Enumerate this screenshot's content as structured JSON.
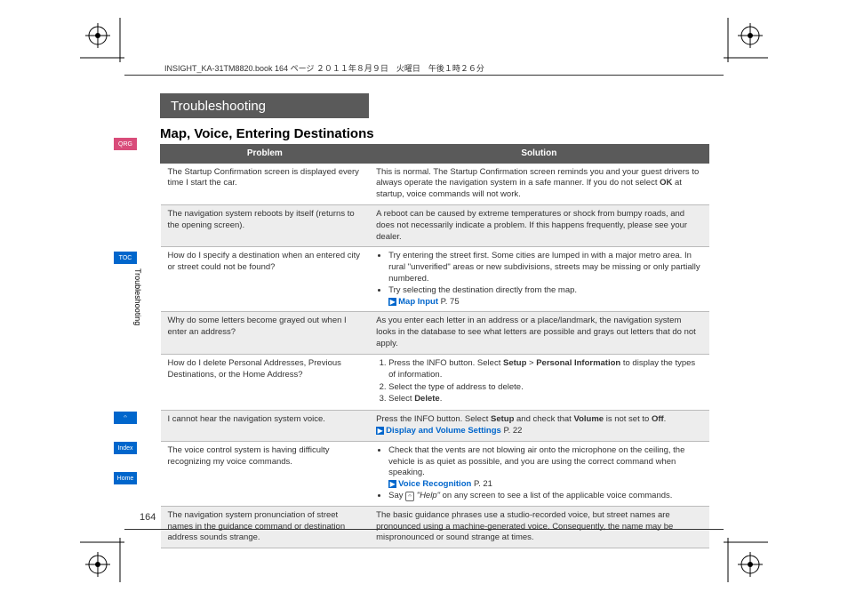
{
  "header_stamp": "INSIGHT_KA-31TM8820.book  164 ページ  ２０１１年８月９日　火曜日　午後１時２６分",
  "title_bar": "Troubleshooting",
  "section_heading": "Map, Voice, Entering Destinations",
  "vertical_label": "Troubleshooting",
  "page_number": "164",
  "side_tabs": {
    "qrg": "QRG",
    "toc": "TOC",
    "vr": "",
    "index": "Index",
    "home": "Home"
  },
  "table": {
    "headers": {
      "problem": "Problem",
      "solution": "Solution"
    },
    "rows": [
      {
        "shade": false,
        "problem": "The Startup Confirmation screen is displayed every time I start the car.",
        "solution_html": "This is normal. The Startup Confirmation screen reminds you and your guest drivers to always operate the navigation system in a safe manner. If you do not select <b>OK</b> at startup, voice commands will not work."
      },
      {
        "shade": true,
        "problem": "The navigation system reboots by itself (returns to the opening screen).",
        "solution_html": "A reboot can be caused by extreme temperatures or shock from bumpy roads, and does not necessarily indicate a problem. If this happens frequently, please see your dealer."
      },
      {
        "shade": false,
        "problem": "How do I specify a destination when an entered city or street could not be found?",
        "solution_html": "<ul class='sol-list'><li>Try entering the street first. Some cities are lumped in with a major metro area. In rural \"unverified\" areas or new subdivisions, streets may be missing or only partially numbered.</li><li>Try selecting the destination directly from the map.<br><span class='link-icon'>▶</span><span class='link-ref'>Map Input</span> P. 75</li></ul>"
      },
      {
        "shade": true,
        "problem": "Why do some letters become grayed out when I enter an address?",
        "solution_html": "As you enter each letter in an address or a place/landmark, the navigation system looks in the database to see what letters are possible and grays out letters that do not apply."
      },
      {
        "shade": false,
        "problem": "How do I delete Personal Addresses, Previous Destinations, or the Home Address?",
        "solution_html": "<ol class='sol-list'><li>Press the INFO button. Select <b>Setup</b> &gt; <b>Personal Information</b> to display the types of information.</li><li>Select the type of address to delete.</li><li>Select <b>Delete</b>.</li></ol>"
      },
      {
        "shade": true,
        "problem": "I cannot hear the navigation system voice.",
        "solution_html": "Press the INFO button. Select <b>Setup</b> and check that <b>Volume</b> is not set to <b>Off</b>.<br><span class='link-icon'>▶</span><span class='link-ref'>Display and Volume Settings</span> P. 22"
      },
      {
        "shade": false,
        "problem": "The voice control system is having difficulty recognizing my voice commands.",
        "solution_html": "<ul class='sol-list'><li>Check that the vents are not blowing air onto the microphone on the ceiling, the vehicle is as quiet as possible, and you are using the correct command when speaking.<br><span class='link-icon'>▶</span><span class='link-ref'>Voice Recognition</span> P. 21</li><li>Say <span class='vr-icon'>𝄐</span> <i>\"Help\"</i> on any screen to see a list of the applicable voice commands.</li></ul>"
      },
      {
        "shade": true,
        "problem": "The navigation system pronunciation of street names in the guidance command or destination address sounds strange.",
        "solution_html": "The basic guidance phrases use a studio-recorded voice, but street names are pronounced using a machine-generated voice. Consequently, the name may be mispronounced or sound strange at times."
      }
    ]
  }
}
